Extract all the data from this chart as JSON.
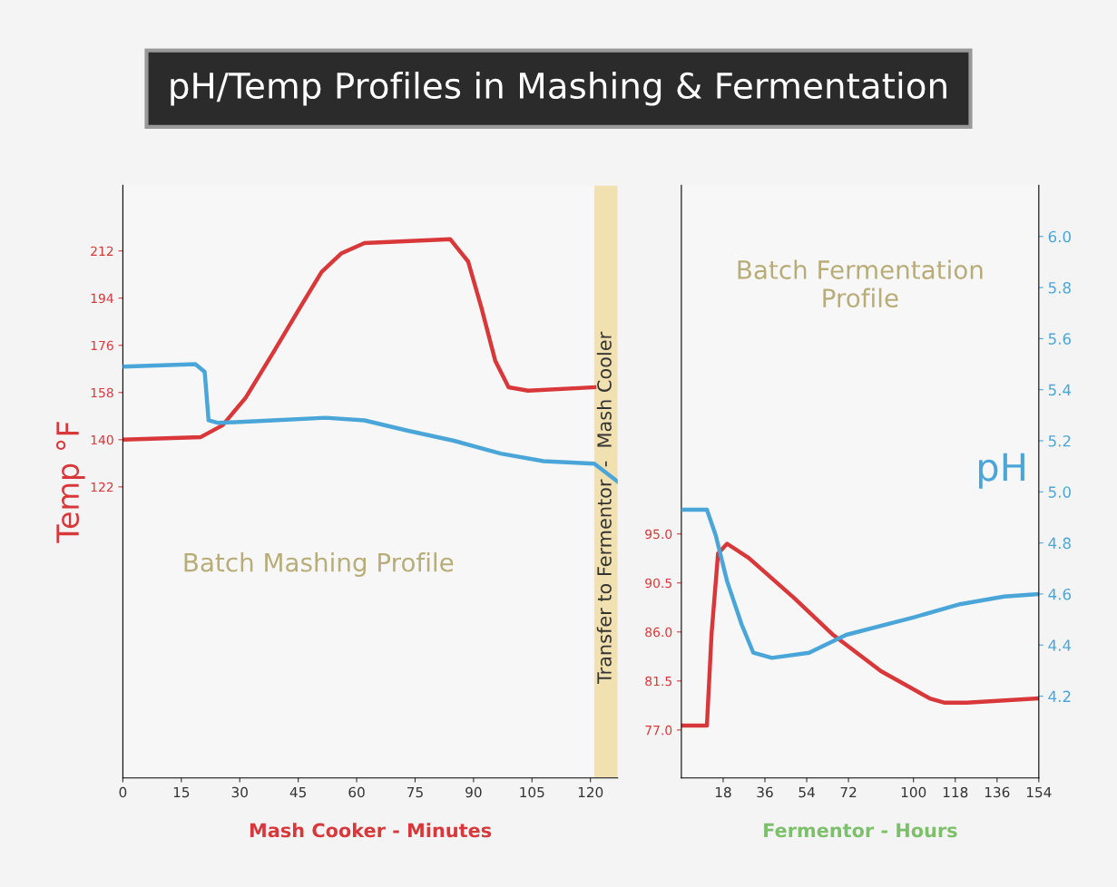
{
  "chart_data": [
    {
      "type": "line",
      "title": "pH/Temp Profiles in Mashing & Fermentation",
      "ylabel": "Temp °F",
      "xlabel": "Mash Cooker - Minutes",
      "xlim": [
        0,
        127
      ],
      "xticks": [
        0,
        15,
        30,
        45,
        60,
        75,
        90,
        105,
        120
      ],
      "ylim": [
        11,
        237
      ],
      "yticks": [
        122,
        140,
        158,
        176,
        194,
        212
      ],
      "y2lim": [
        3.88,
        6.2
      ],
      "bands": [
        {
          "axis": "x",
          "from": 121,
          "to": 127,
          "label": "Transfer to Fermentor  -  Mash Cooler",
          "color": "#f1e0b0"
        }
      ],
      "annotations": [
        "Batch Mashing Profile"
      ],
      "series": [
        {
          "color": "#d9383a",
          "x": [
            0,
            20,
            25.6,
            31.5,
            38.5,
            45.5,
            51,
            56,
            62,
            84,
            88.6,
            92,
            95.6,
            99,
            104,
            121
          ],
          "values": [
            140,
            141,
            145.5,
            156,
            173,
            190.5,
            204,
            211,
            215,
            216.5,
            208,
            190.5,
            170,
            160,
            158.7,
            160
          ]
        },
        {
          "color": "#4aa6d8",
          "axis": "y2",
          "x": [
            0,
            18.6,
            21,
            22,
            24.5,
            38.5,
            52,
            62,
            73,
            85,
            97,
            108,
            121,
            127
          ],
          "values": [
            5.49,
            5.5,
            5.47,
            5.28,
            5.27,
            5.28,
            5.29,
            5.28,
            5.24,
            5.2,
            5.15,
            5.12,
            5.11,
            5.04
          ]
        }
      ]
    },
    {
      "type": "line",
      "xlabel": "Fermentor - Hours",
      "y2label": "pH",
      "xlim": [
        0,
        154
      ],
      "xticks": [
        18,
        36,
        54,
        72,
        100,
        118,
        136,
        154
      ],
      "ylim": [
        72.6,
        127
      ],
      "yticks": [
        {
          "value": 77,
          "label": "77.0"
        },
        81.5,
        {
          "value": 86,
          "label": "86.0"
        },
        90.5,
        {
          "value": 95,
          "label": "95.0"
        }
      ],
      "y2lim": [
        3.88,
        6.2
      ],
      "y2ticks": [
        4.2,
        4.4,
        4.6,
        4.8,
        {
          "value": 5,
          "label": "5.0"
        },
        5.2,
        5.4,
        5.6,
        5.8,
        {
          "value": 6,
          "label": "6.0"
        }
      ],
      "annotations": [
        "Batch Fermentation\nProfile"
      ],
      "series": [
        {
          "color": "#d9383a",
          "x": [
            0,
            11,
            13,
            15.8,
            19.7,
            29,
            48.7,
            65,
            86,
            107,
            113.5,
            123,
            154
          ],
          "values": [
            77.4,
            77.4,
            85.8,
            93.2,
            94.1,
            92.8,
            89.1,
            85.8,
            82.4,
            79.9,
            79.5,
            79.5,
            79.9
          ]
        },
        {
          "color": "#4aa6d8",
          "axis": "y2",
          "x": [
            0,
            11,
            14.8,
            19.7,
            26,
            31,
            39,
            55,
            71,
            100.6,
            120,
            139,
            154
          ],
          "values": [
            4.93,
            4.93,
            4.83,
            4.65,
            4.48,
            4.37,
            4.35,
            4.37,
            4.44,
            4.51,
            4.56,
            4.59,
            4.6
          ]
        }
      ]
    }
  ]
}
